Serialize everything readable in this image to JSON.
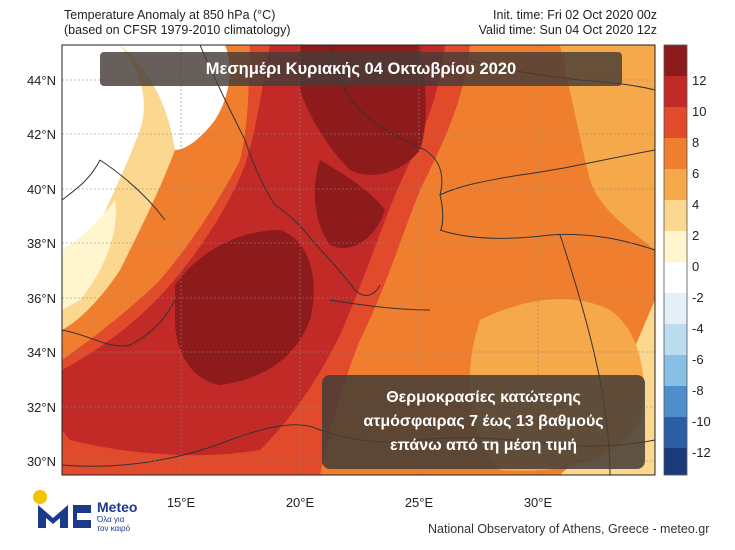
{
  "header": {
    "title_line1": "Temperature Anomaly at 850 hPa (°C)",
    "title_line2": "(based on CFSR 1979-2010 climatology)",
    "init_time": "Init. time: Fri 02 Oct 2020 00z",
    "valid_time": "Valid time: Sun 04 Oct 2020 12z"
  },
  "banner_top": "Μεσημέρι Κυριακής 04 Οκτωβρίου 2020",
  "banner_bottom": {
    "line1": "Θερμοκρασίες  κατώτερης",
    "line2": "ατμόσφαιρας 7 έως 13 βαθμούς",
    "line3": "επάνω από τη μέση τιμή"
  },
  "axes": {
    "lat_labels": [
      "44°N",
      "42°N",
      "40°N",
      "38°N",
      "36°N",
      "34°N",
      "32°N",
      "30°N"
    ],
    "lon_labels": [
      "15°E",
      "20°E",
      "25°E",
      "30°E"
    ]
  },
  "colorbar": {
    "labels": [
      "12",
      "10",
      "8",
      "6",
      "4",
      "2",
      "0",
      "-2",
      "-4",
      "-6",
      "-8",
      "-10",
      "-12"
    ],
    "colors": [
      "#8e1b1b",
      "#c12a27",
      "#e24a2c",
      "#ef7f2e",
      "#f6a94a",
      "#fbd78f",
      "#fff5cf",
      "#ffffff",
      "#e4f0f8",
      "#bcdcf0",
      "#88bfe4",
      "#4d8ecb",
      "#2b5ea7",
      "#1a3a7a"
    ]
  },
  "logo": {
    "name": "Meteo",
    "tagline": "Όλα για τον καιρό"
  },
  "footer": "National Observatory of Athens, Greece - meteo.gr"
}
